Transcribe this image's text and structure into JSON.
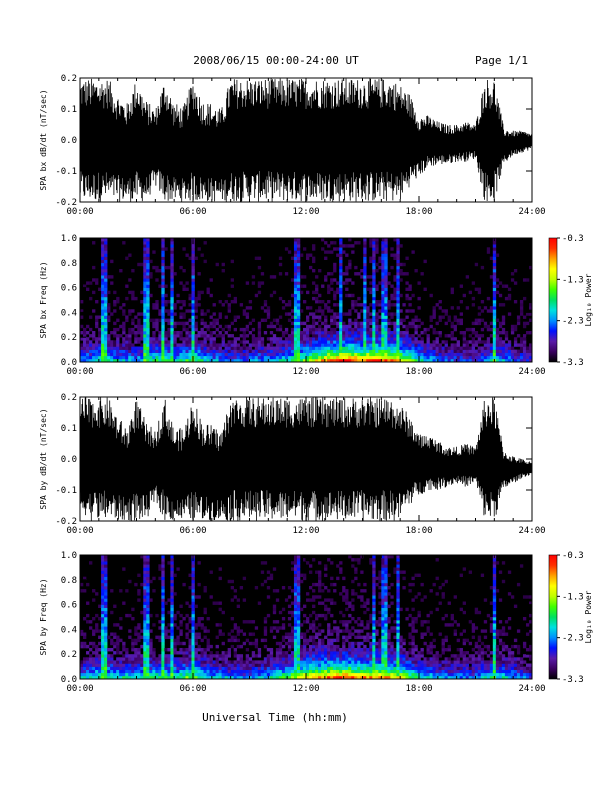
{
  "header": {
    "title": "2008/06/15  00:00-24:00 UT",
    "page": "Page 1/1"
  },
  "footer": {
    "xlabel": "Universal Time (hh:mm)"
  },
  "colorbar": {
    "label": "Log₁₀ Power",
    "ticks": [
      "-0.3",
      "-1.3",
      "-2.3",
      "-3.3"
    ],
    "range": [
      -3.3,
      -0.3
    ],
    "colors": [
      "#000000",
      "#3a0060",
      "#5a1aa8",
      "#0010ff",
      "#0090ff",
      "#00e0e0",
      "#00e060",
      "#40ff00",
      "#c0ff00",
      "#ffff00",
      "#ffa000",
      "#ff3000",
      "#ff0000"
    ]
  },
  "chart_data": [
    {
      "type": "line",
      "title": "",
      "ylabel": "SPA bx dB/dt (nT/sec)",
      "xlabel": "",
      "xlim": [
        0,
        24
      ],
      "ylim": [
        -0.2,
        0.2
      ],
      "xticks": [
        "00:00",
        "06:00",
        "12:00",
        "18:00",
        "24:00"
      ],
      "yticks": [
        "0.2",
        "0.1",
        "0.0",
        "-0.1",
        "-0.2"
      ],
      "envelope": {
        "hours": [
          0,
          0.25,
          0.5,
          1.0,
          1.5,
          2.0,
          2.5,
          3.0,
          3.5,
          4.0,
          4.5,
          5.0,
          5.5,
          6.0,
          6.5,
          7.0,
          7.5,
          8.0,
          9.0,
          10.0,
          11.0,
          12.0,
          13.0,
          14.0,
          15.0,
          16.0,
          16.5,
          17.0,
          17.5,
          18.0,
          18.5,
          19.0,
          19.5,
          20.0,
          20.5,
          21.0,
          21.5,
          22.0,
          22.5,
          23.0,
          23.5,
          24.0
        ],
        "upper": [
          0.2,
          0.2,
          0.2,
          0.2,
          0.2,
          0.15,
          0.12,
          0.2,
          0.13,
          0.1,
          0.2,
          0.12,
          0.11,
          0.2,
          0.13,
          0.12,
          0.1,
          0.2,
          0.2,
          0.2,
          0.2,
          0.2,
          0.2,
          0.2,
          0.2,
          0.2,
          0.2,
          0.18,
          0.15,
          0.08,
          0.08,
          0.06,
          0.05,
          0.05,
          0.06,
          0.05,
          0.2,
          0.2,
          0.04,
          0.03,
          0.03,
          0.02
        ],
        "lower": [
          -0.2,
          -0.2,
          -0.2,
          -0.2,
          -0.2,
          -0.2,
          -0.2,
          -0.2,
          -0.2,
          -0.15,
          -0.2,
          -0.2,
          -0.2,
          -0.2,
          -0.2,
          -0.2,
          -0.2,
          -0.2,
          -0.2,
          -0.2,
          -0.2,
          -0.2,
          -0.2,
          -0.2,
          -0.2,
          -0.2,
          -0.2,
          -0.2,
          -0.15,
          -0.12,
          -0.09,
          -0.08,
          -0.08,
          -0.07,
          -0.07,
          -0.06,
          -0.2,
          -0.2,
          -0.08,
          -0.05,
          -0.04,
          -0.03
        ]
      }
    },
    {
      "type": "heatmap",
      "title": "",
      "ylabel": "SPA bx Freq (Hz)",
      "xlabel": "",
      "xlim": [
        0,
        24
      ],
      "ylim": [
        0,
        1
      ],
      "xticks": [
        "00:00",
        "06:00",
        "12:00",
        "18:00",
        "24:00"
      ],
      "yticks": [
        "1.0",
        "0.8",
        "0.6",
        "0.4",
        "0.2",
        "0.0"
      ],
      "zlim": [
        -3.3,
        -0.3
      ],
      "activity_hours": [
        0,
        1,
        2,
        3,
        4,
        5,
        6,
        7,
        8,
        9,
        10,
        11,
        12,
        13,
        14,
        15,
        16,
        17,
        18,
        19,
        20,
        21,
        22,
        23,
        24
      ],
      "activity_level": [
        0.3,
        0.45,
        0.4,
        0.35,
        0.5,
        0.4,
        0.55,
        0.35,
        0.3,
        0.3,
        0.35,
        0.45,
        0.6,
        0.8,
        0.95,
        0.85,
        0.9,
        0.75,
        0.45,
        0.3,
        0.25,
        0.25,
        0.4,
        0.3,
        0.2
      ],
      "spike_hours": [
        1.3,
        3.5,
        4.4,
        4.9,
        6.0,
        11.5,
        13.8,
        15.1,
        15.6,
        16.2,
        16.9,
        22.0
      ]
    },
    {
      "type": "line",
      "title": "",
      "ylabel": "SPA by dB/dt (nT/sec)",
      "xlabel": "",
      "xlim": [
        0,
        24
      ],
      "ylim": [
        -0.2,
        0.2
      ],
      "xticks": [
        "00:00",
        "06:00",
        "12:00",
        "18:00",
        "24:00"
      ],
      "yticks": [
        "0.2",
        "0.1",
        "0.0",
        "-0.1",
        "-0.2"
      ],
      "envelope": {
        "hours": [
          0,
          0.25,
          0.5,
          1.0,
          1.5,
          2.0,
          2.5,
          3.0,
          3.5,
          4.0,
          4.5,
          5.0,
          5.5,
          6.0,
          6.5,
          7.0,
          7.5,
          8.0,
          9.0,
          10.0,
          11.0,
          12.0,
          13.0,
          14.0,
          15.0,
          16.0,
          16.5,
          17.0,
          17.5,
          18.0,
          18.5,
          19.0,
          19.5,
          20.0,
          20.5,
          21.0,
          21.5,
          22.0,
          22.5,
          23.0,
          23.5,
          24.0
        ],
        "upper": [
          0.2,
          0.2,
          0.2,
          0.2,
          0.2,
          0.14,
          0.1,
          0.2,
          0.12,
          0.09,
          0.2,
          0.1,
          0.1,
          0.2,
          0.12,
          0.11,
          0.09,
          0.2,
          0.2,
          0.2,
          0.2,
          0.2,
          0.2,
          0.2,
          0.2,
          0.2,
          0.2,
          0.18,
          0.14,
          0.08,
          0.08,
          0.06,
          0.04,
          0.04,
          0.05,
          0.04,
          0.2,
          0.2,
          0.03,
          0.01,
          0.0,
          -0.01
        ],
        "lower": [
          -0.2,
          -0.18,
          -0.2,
          -0.2,
          -0.2,
          -0.2,
          -0.2,
          -0.2,
          -0.2,
          -0.14,
          -0.2,
          -0.2,
          -0.2,
          -0.2,
          -0.2,
          -0.2,
          -0.2,
          -0.2,
          -0.2,
          -0.2,
          -0.2,
          -0.2,
          -0.2,
          -0.2,
          -0.2,
          -0.2,
          -0.2,
          -0.2,
          -0.15,
          -0.12,
          -0.1,
          -0.1,
          -0.09,
          -0.08,
          -0.09,
          -0.08,
          -0.2,
          -0.2,
          -0.1,
          -0.08,
          -0.06,
          -0.05
        ]
      }
    },
    {
      "type": "heatmap",
      "title": "",
      "ylabel": "SPA by Freq (Hz)",
      "xlabel": "Universal Time (hh:mm)",
      "xlim": [
        0,
        24
      ],
      "ylim": [
        0,
        1
      ],
      "xticks": [
        "00:00",
        "06:00",
        "12:00",
        "18:00",
        "24:00"
      ],
      "yticks": [
        "1.0",
        "0.8",
        "0.6",
        "0.4",
        "0.2",
        "0.0"
      ],
      "zlim": [
        -3.3,
        -0.3
      ],
      "activity_hours": [
        0,
        1,
        2,
        3,
        4,
        5,
        6,
        7,
        8,
        9,
        10,
        11,
        12,
        13,
        14,
        15,
        16,
        17,
        18,
        19,
        20,
        21,
        22,
        23,
        24
      ],
      "activity_level": [
        0.35,
        0.5,
        0.45,
        0.4,
        0.5,
        0.45,
        0.6,
        0.4,
        0.35,
        0.3,
        0.4,
        0.55,
        0.75,
        0.85,
        0.9,
        0.8,
        0.85,
        0.7,
        0.45,
        0.35,
        0.3,
        0.3,
        0.45,
        0.35,
        0.25
      ],
      "spike_hours": [
        1.3,
        3.5,
        4.4,
        4.9,
        6.0,
        11.5,
        15.6,
        16.2,
        16.9,
        22.0
      ]
    }
  ]
}
